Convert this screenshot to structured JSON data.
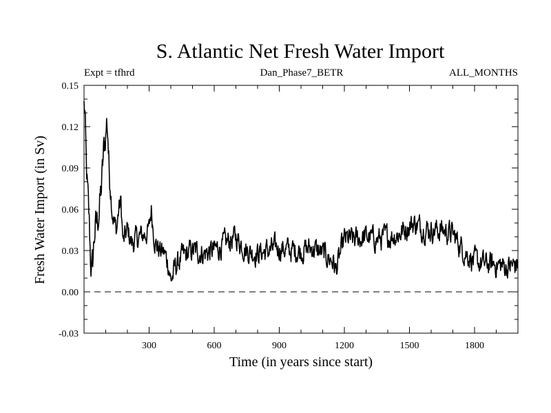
{
  "chart_data": {
    "type": "line",
    "title": "S. Atlantic Net Fresh Water Import",
    "subtitle_left": "Expt = tfhrd",
    "subtitle_center": "Dan_Phase7_BETR",
    "subtitle_right": "ALL_MONTHS",
    "xlabel": "Time (in years since start)",
    "ylabel": "Fresh Water Import (in Sv)",
    "xlim": [
      0,
      2000
    ],
    "ylim": [
      -0.03,
      0.15
    ],
    "xticks": [
      300,
      600,
      900,
      1200,
      1500,
      1800
    ],
    "xtick_labels": [
      "300",
      "600",
      "900",
      "1200",
      "1500",
      "1800"
    ],
    "yticks": [
      -0.03,
      0.0,
      0.03,
      0.06,
      0.09,
      0.12,
      0.15
    ],
    "ytick_labels": [
      "-0.03",
      "0.00",
      "0.03",
      "0.06",
      "0.09",
      "0.12",
      "0.15"
    ],
    "reference_line": {
      "y": 0.0,
      "style": "dashed"
    },
    "series": [
      {
        "name": "Net Fresh Water Import",
        "color": "#000000",
        "keypoints": {
          "x": [
            0,
            4,
            10,
            15,
            20,
            25,
            30,
            35,
            40,
            45,
            50,
            60,
            70,
            80,
            90,
            100,
            105,
            110,
            115,
            120,
            130,
            140,
            150,
            160,
            170,
            180,
            190,
            200,
            210,
            220,
            240,
            260,
            280,
            300,
            310,
            320,
            330,
            350,
            370,
            390,
            400,
            410,
            420,
            430,
            450,
            500,
            550,
            600,
            650,
            700,
            750,
            800,
            850,
            900,
            950,
            1000,
            1050,
            1100,
            1150,
            1160,
            1200,
            1250,
            1300,
            1350,
            1400,
            1450,
            1500,
            1520,
            1550,
            1600,
            1650,
            1700,
            1750,
            1800,
            1850,
            1900,
            1950,
            2000
          ],
          "y": [
            0.135,
            0.13,
            0.09,
            0.075,
            0.06,
            0.045,
            0.025,
            0.015,
            0.02,
            0.035,
            0.045,
            0.05,
            0.06,
            0.075,
            0.1,
            0.115,
            0.125,
            0.115,
            0.09,
            0.08,
            0.06,
            0.05,
            0.045,
            0.06,
            0.065,
            0.035,
            0.04,
            0.045,
            0.04,
            0.035,
            0.038,
            0.04,
            0.042,
            0.045,
            0.06,
            0.045,
            0.035,
            0.03,
            0.028,
            0.02,
            0.008,
            0.012,
            0.018,
            0.02,
            0.025,
            0.03,
            0.028,
            0.03,
            0.035,
            0.04,
            0.03,
            0.028,
            0.03,
            0.032,
            0.03,
            0.03,
            0.032,
            0.028,
            0.022,
            0.015,
            0.038,
            0.038,
            0.04,
            0.038,
            0.04,
            0.042,
            0.048,
            0.05,
            0.047,
            0.045,
            0.045,
            0.042,
            0.03,
            0.022,
            0.02,
            0.02,
            0.018,
            0.02
          ]
        }
      }
    ]
  }
}
